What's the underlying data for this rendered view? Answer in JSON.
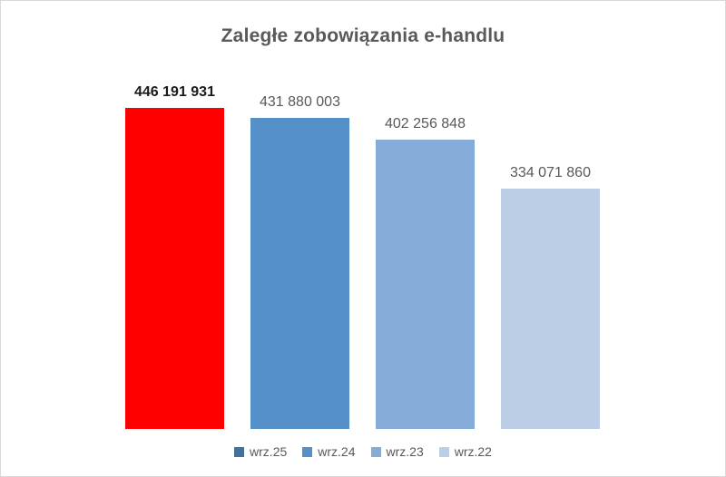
{
  "chart_data": {
    "type": "bar",
    "title": "Zaległe zobowiązania e-handlu",
    "categories": [
      "wrz.25",
      "wrz.24",
      "wrz.23",
      "wrz.22"
    ],
    "series": [
      {
        "name": "wrz.25",
        "value": 446191931,
        "label": "446 191 931",
        "bar_color": "#FF0000",
        "legend_color": "#41719C",
        "label_emphasis": true
      },
      {
        "name": "wrz.24",
        "value": 431880003,
        "label": "431 880 003",
        "bar_color": "#5591C8",
        "legend_color": "#5591C8",
        "label_emphasis": false
      },
      {
        "name": "wrz.23",
        "value": 402256848,
        "label": "402 256 848",
        "bar_color": "#85ACD8",
        "legend_color": "#85ACD8",
        "label_emphasis": false
      },
      {
        "name": "wrz.22",
        "value": 334071860,
        "label": "334 071 860",
        "bar_color": "#BCCDE6",
        "legend_color": "#BCCDE6",
        "label_emphasis": false
      }
    ],
    "xlabel": "",
    "ylabel": "",
    "ylim": [
      0,
      446191931
    ],
    "grid": false,
    "axes_visible": false,
    "data_labels": true,
    "legend_position": "bottom",
    "colors": {
      "title_text": "#595959",
      "label_text": "#595959",
      "label_emphasis_text": "#1a1a1a",
      "legend_text": "#595959",
      "background": "#FFFFFF",
      "border": "#D9D9D9"
    }
  }
}
